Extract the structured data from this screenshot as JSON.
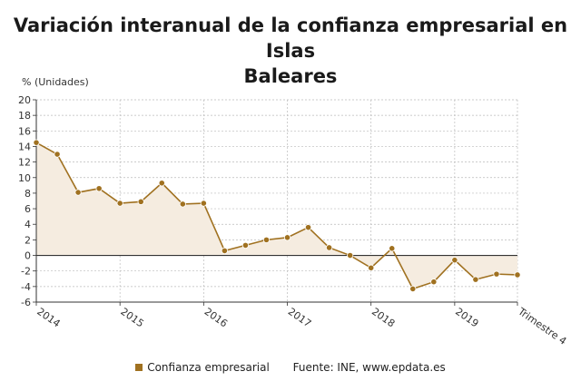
{
  "title_line1": "Variación interanual de la confianza empresarial en Islas",
  "title_line2": "Baleares",
  "source": "Fuente: INE, www.epdata.es",
  "colors": {
    "line": "#a07120",
    "fill": "#f5ece0",
    "grid": "#bbbbbb",
    "zero": "#333333"
  },
  "chart_data": {
    "type": "area",
    "ylabel": "% (Unidades)",
    "ylim": [
      -6,
      20
    ],
    "yticks": [
      20,
      18,
      16,
      14,
      12,
      10,
      8,
      6,
      4,
      2,
      0,
      -2,
      -4,
      -6
    ],
    "x_tick_labels": [
      "2014",
      "2015",
      "2016",
      "2017",
      "2018",
      "2019",
      "Trimestre 4"
    ],
    "grid": true,
    "legend_position": "bottom",
    "series": [
      {
        "name": "Confianza empresarial",
        "values": [
          14.5,
          13.0,
          8.1,
          8.6,
          6.7,
          6.9,
          9.3,
          6.6,
          6.7,
          0.6,
          1.3,
          2.0,
          2.3,
          3.6,
          1.0,
          0.0,
          -1.6,
          0.9,
          -4.3,
          -3.4,
          -0.6,
          -3.1,
          -2.4,
          -2.5
        ]
      }
    ]
  }
}
